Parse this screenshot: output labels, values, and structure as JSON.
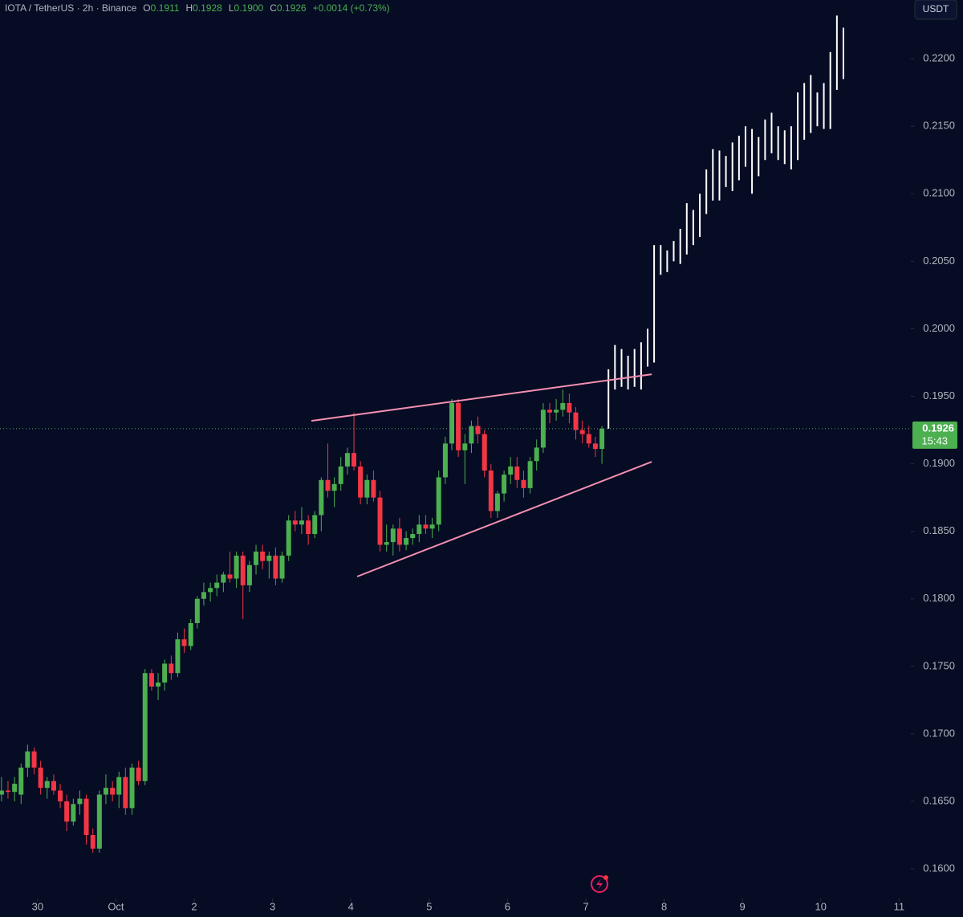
{
  "chart_data": {
    "type": "candlestick",
    "header": {
      "symbol": "IOTA / TetherUS · 2h · Binance",
      "ohlc": [
        {
          "label": "O",
          "value": "0.1911"
        },
        {
          "label": "H",
          "value": "0.1928"
        },
        {
          "label": "L",
          "value": "0.1900"
        },
        {
          "label": "C",
          "value": "0.1926"
        }
      ],
      "change": "+0.0014 (+0.73%)"
    },
    "currency": "USDT",
    "last_price": {
      "value": 0.1926,
      "label": "0.1926"
    },
    "countdown": "15:43",
    "up_color": "#4caf50",
    "down_color": "#f23645",
    "projection_color": "#ffffff",
    "trendline_color": "#f48fb1",
    "xlim": [
      -0.48,
      11.15
    ],
    "ylim": [
      0.15804,
      0.22435
    ],
    "xticks": [
      {
        "value": 0,
        "label": "30"
      },
      {
        "value": 1,
        "label": "Oct"
      },
      {
        "value": 2,
        "label": "2"
      },
      {
        "value": 3,
        "label": "3"
      },
      {
        "value": 4,
        "label": "4"
      },
      {
        "value": 5,
        "label": "5"
      },
      {
        "value": 6,
        "label": "6"
      },
      {
        "value": 7,
        "label": "7"
      },
      {
        "value": 8,
        "label": "8"
      },
      {
        "value": 9,
        "label": "9"
      },
      {
        "value": 10,
        "label": "10"
      },
      {
        "value": 11,
        "label": "11"
      }
    ],
    "yticks": [
      {
        "value": 0.16,
        "label": "0.1600"
      },
      {
        "value": 0.165,
        "label": "0.1650"
      },
      {
        "value": 0.17,
        "label": "0.1700"
      },
      {
        "value": 0.175,
        "label": "0.1750"
      },
      {
        "value": 0.18,
        "label": "0.1800"
      },
      {
        "value": 0.185,
        "label": "0.1850"
      },
      {
        "value": 0.19,
        "label": "0.1900"
      },
      {
        "value": 0.195,
        "label": "0.1950"
      },
      {
        "value": 0.2,
        "label": "0.2000"
      },
      {
        "value": 0.205,
        "label": "0.2050"
      },
      {
        "value": 0.21,
        "label": "0.2100"
      },
      {
        "value": 0.215,
        "label": "0.2150"
      },
      {
        "value": 0.22,
        "label": "0.2200"
      }
    ],
    "x": [
      -0.461,
      -0.378,
      -0.294,
      -0.211,
      -0.128,
      -0.044,
      0.039,
      0.122,
      0.206,
      0.289,
      0.372,
      0.456,
      0.539,
      0.622,
      0.706,
      0.789,
      0.872,
      0.956,
      1.039,
      1.122,
      1.206,
      1.289,
      1.372,
      1.456,
      1.539,
      1.622,
      1.706,
      1.789,
      1.872,
      1.956,
      2.039,
      2.122,
      2.206,
      2.289,
      2.372,
      2.456,
      2.539,
      2.622,
      2.706,
      2.789,
      2.872,
      2.956,
      3.039,
      3.122,
      3.206,
      3.289,
      3.372,
      3.456,
      3.539,
      3.622,
      3.706,
      3.789,
      3.872,
      3.956,
      4.039,
      4.122,
      4.206,
      4.289,
      4.372,
      4.456,
      4.539,
      4.622,
      4.706,
      4.789,
      4.872,
      4.956,
      5.039,
      5.122,
      5.206,
      5.289,
      5.372,
      5.456,
      5.539,
      5.622,
      5.706,
      5.789,
      5.872,
      5.956,
      6.039,
      6.122,
      6.206,
      6.289,
      6.372,
      6.456,
      6.539,
      6.622,
      6.706,
      6.789,
      6.872,
      6.956,
      7.039,
      7.122,
      7.206
    ],
    "open": [
      0.1655,
      0.1658,
      0.1657,
      0.1655,
      0.1675,
      0.1687,
      0.1675,
      0.166,
      0.1665,
      0.1658,
      0.165,
      0.1635,
      0.1648,
      0.1652,
      0.1625,
      0.1615,
      0.1655,
      0.166,
      0.1655,
      0.1668,
      0.1645,
      0.1675,
      0.1665,
      0.1745,
      0.1735,
      0.1738,
      0.1752,
      0.1745,
      0.177,
      0.1765,
      0.1782,
      0.18,
      0.1805,
      0.1808,
      0.1812,
      0.1818,
      0.1815,
      0.1832,
      0.181,
      0.1825,
      0.1835,
      0.1828,
      0.1832,
      0.1815,
      0.1832,
      0.1858,
      0.1855,
      0.1858,
      0.1848,
      0.1862,
      0.1888,
      0.188,
      0.1885,
      0.1898,
      0.1908,
      0.1898,
      0.1875,
      0.1888,
      0.1875,
      0.184,
      0.1842,
      0.1852,
      0.184,
      0.1845,
      0.1848,
      0.1855,
      0.1852,
      0.1855,
      0.189,
      0.1915,
      0.1945,
      0.191,
      0.1915,
      0.1928,
      0.1922,
      0.1895,
      0.1865,
      0.1878,
      0.1892,
      0.1898,
      0.1888,
      0.1882,
      0.1902,
      0.1912,
      0.194,
      0.1938,
      0.194,
      0.1945,
      0.1938,
      0.1925,
      0.1922,
      0.1915,
      0.1911
    ],
    "high": [
      0.1668,
      0.1665,
      0.1668,
      0.1678,
      0.1692,
      0.169,
      0.168,
      0.1668,
      0.167,
      0.1663,
      0.1655,
      0.1652,
      0.1658,
      0.1655,
      0.163,
      0.1658,
      0.167,
      0.1665,
      0.1672,
      0.1675,
      0.1678,
      0.168,
      0.1748,
      0.1748,
      0.1745,
      0.1755,
      0.1758,
      0.1775,
      0.1778,
      0.1785,
      0.1802,
      0.1812,
      0.1812,
      0.1818,
      0.182,
      0.1835,
      0.1835,
      0.1835,
      0.1828,
      0.184,
      0.184,
      0.1835,
      0.1838,
      0.1835,
      0.1862,
      0.1865,
      0.1868,
      0.1862,
      0.1865,
      0.189,
      0.1915,
      0.189,
      0.1905,
      0.1912,
      0.1938,
      0.1902,
      0.1892,
      0.1895,
      0.188,
      0.1855,
      0.1855,
      0.186,
      0.185,
      0.1852,
      0.1862,
      0.1862,
      0.186,
      0.1895,
      0.192,
      0.1948,
      0.1948,
      0.1922,
      0.1932,
      0.1935,
      0.1925,
      0.19,
      0.188,
      0.1895,
      0.1905,
      0.1905,
      0.1895,
      0.1905,
      0.1918,
      0.1945,
      0.1945,
      0.1948,
      0.1955,
      0.1952,
      0.1942,
      0.1932,
      0.1928,
      0.192,
      0.1928
    ],
    "low": [
      0.165,
      0.1652,
      0.165,
      0.1648,
      0.1668,
      0.167,
      0.1655,
      0.1652,
      0.1655,
      0.1645,
      0.1628,
      0.1632,
      0.164,
      0.1618,
      0.1612,
      0.1612,
      0.1648,
      0.165,
      0.1645,
      0.164,
      0.164,
      0.1662,
      0.1662,
      0.1732,
      0.1725,
      0.1732,
      0.174,
      0.1742,
      0.176,
      0.1762,
      0.1778,
      0.1795,
      0.1798,
      0.1802,
      0.1805,
      0.1812,
      0.1808,
      0.1785,
      0.1805,
      0.1818,
      0.1822,
      0.1815,
      0.181,
      0.1812,
      0.1828,
      0.185,
      0.1848,
      0.184,
      0.1845,
      0.185,
      0.1875,
      0.1868,
      0.188,
      0.1892,
      0.1895,
      0.187,
      0.187,
      0.1872,
      0.1835,
      0.1835,
      0.1832,
      0.1835,
      0.1836,
      0.184,
      0.1842,
      0.1848,
      0.1845,
      0.185,
      0.1885,
      0.191,
      0.1905,
      0.1885,
      0.1908,
      0.1915,
      0.189,
      0.186,
      0.186,
      0.1872,
      0.1885,
      0.1882,
      0.1875,
      0.1878,
      0.1895,
      0.1908,
      0.193,
      0.1932,
      0.1935,
      0.193,
      0.1918,
      0.1915,
      0.1912,
      0.1905,
      0.19
    ],
    "close": [
      0.1658,
      0.1657,
      0.1663,
      0.1675,
      0.1687,
      0.1675,
      0.166,
      0.1665,
      0.1658,
      0.165,
      0.1635,
      0.1648,
      0.1652,
      0.1625,
      0.1615,
      0.1655,
      0.166,
      0.1655,
      0.1668,
      0.1645,
      0.1675,
      0.1665,
      0.1745,
      0.1735,
      0.1738,
      0.1752,
      0.1745,
      0.177,
      0.1765,
      0.1782,
      0.18,
      0.1805,
      0.1808,
      0.1812,
      0.1818,
      0.1815,
      0.1832,
      0.181,
      0.1825,
      0.1835,
      0.1828,
      0.1832,
      0.1815,
      0.1832,
      0.1858,
      0.1855,
      0.1858,
      0.1848,
      0.1862,
      0.1888,
      0.188,
      0.1885,
      0.1898,
      0.1908,
      0.1898,
      0.1875,
      0.1888,
      0.1875,
      0.184,
      0.1842,
      0.1852,
      0.184,
      0.1845,
      0.1848,
      0.1855,
      0.1852,
      0.1855,
      0.189,
      0.1915,
      0.1945,
      0.191,
      0.1915,
      0.1928,
      0.1922,
      0.1895,
      0.1865,
      0.1878,
      0.1892,
      0.1898,
      0.1888,
      0.1882,
      0.1902,
      0.1912,
      0.194,
      0.1938,
      0.194,
      0.1945,
      0.1938,
      0.1925,
      0.1922,
      0.1915,
      0.1911,
      0.1926
    ],
    "projection": {
      "x": [
        7.289,
        7.372,
        7.456,
        7.539,
        7.622,
        7.706,
        7.789,
        7.872,
        7.956,
        8.039,
        8.122,
        8.206,
        8.289,
        8.372,
        8.456,
        8.539,
        8.622,
        8.706,
        8.789,
        8.872,
        8.956,
        9.039,
        9.122,
        9.206,
        9.289,
        9.372,
        9.456,
        9.539,
        9.622,
        9.706,
        9.789,
        9.872,
        9.956,
        10.039,
        10.122,
        10.206,
        10.289
      ],
      "high": [
        0.197,
        0.1988,
        0.1985,
        0.198,
        0.1985,
        0.199,
        0.2,
        0.2062,
        0.2062,
        0.2058,
        0.2065,
        0.2074,
        0.2093,
        0.2088,
        0.21,
        0.2118,
        0.2133,
        0.2132,
        0.2128,
        0.2138,
        0.2143,
        0.215,
        0.2148,
        0.2142,
        0.2155,
        0.216,
        0.215,
        0.2147,
        0.215,
        0.2175,
        0.2182,
        0.2188,
        0.2175,
        0.2182,
        0.2205,
        0.2232,
        0.2223
      ],
      "low": [
        0.1926,
        0.1955,
        0.1957,
        0.1955,
        0.1957,
        0.1955,
        0.1972,
        0.1975,
        0.204,
        0.2042,
        0.205,
        0.2048,
        0.2055,
        0.2062,
        0.2068,
        0.2085,
        0.2095,
        0.2095,
        0.2105,
        0.2102,
        0.211,
        0.212,
        0.21,
        0.2113,
        0.2125,
        0.213,
        0.2125,
        0.2122,
        0.2118,
        0.2125,
        0.214,
        0.2145,
        0.215,
        0.2148,
        0.2148,
        0.2177,
        0.2185
      ]
    },
    "trendlines": [
      {
        "x": [
          3.496,
          7.842
        ],
        "y": [
          0.19318,
          0.19663
        ]
      },
      {
        "x": [
          4.08,
          7.842
        ],
        "y": [
          0.18165,
          0.19015
        ]
      }
    ]
  }
}
